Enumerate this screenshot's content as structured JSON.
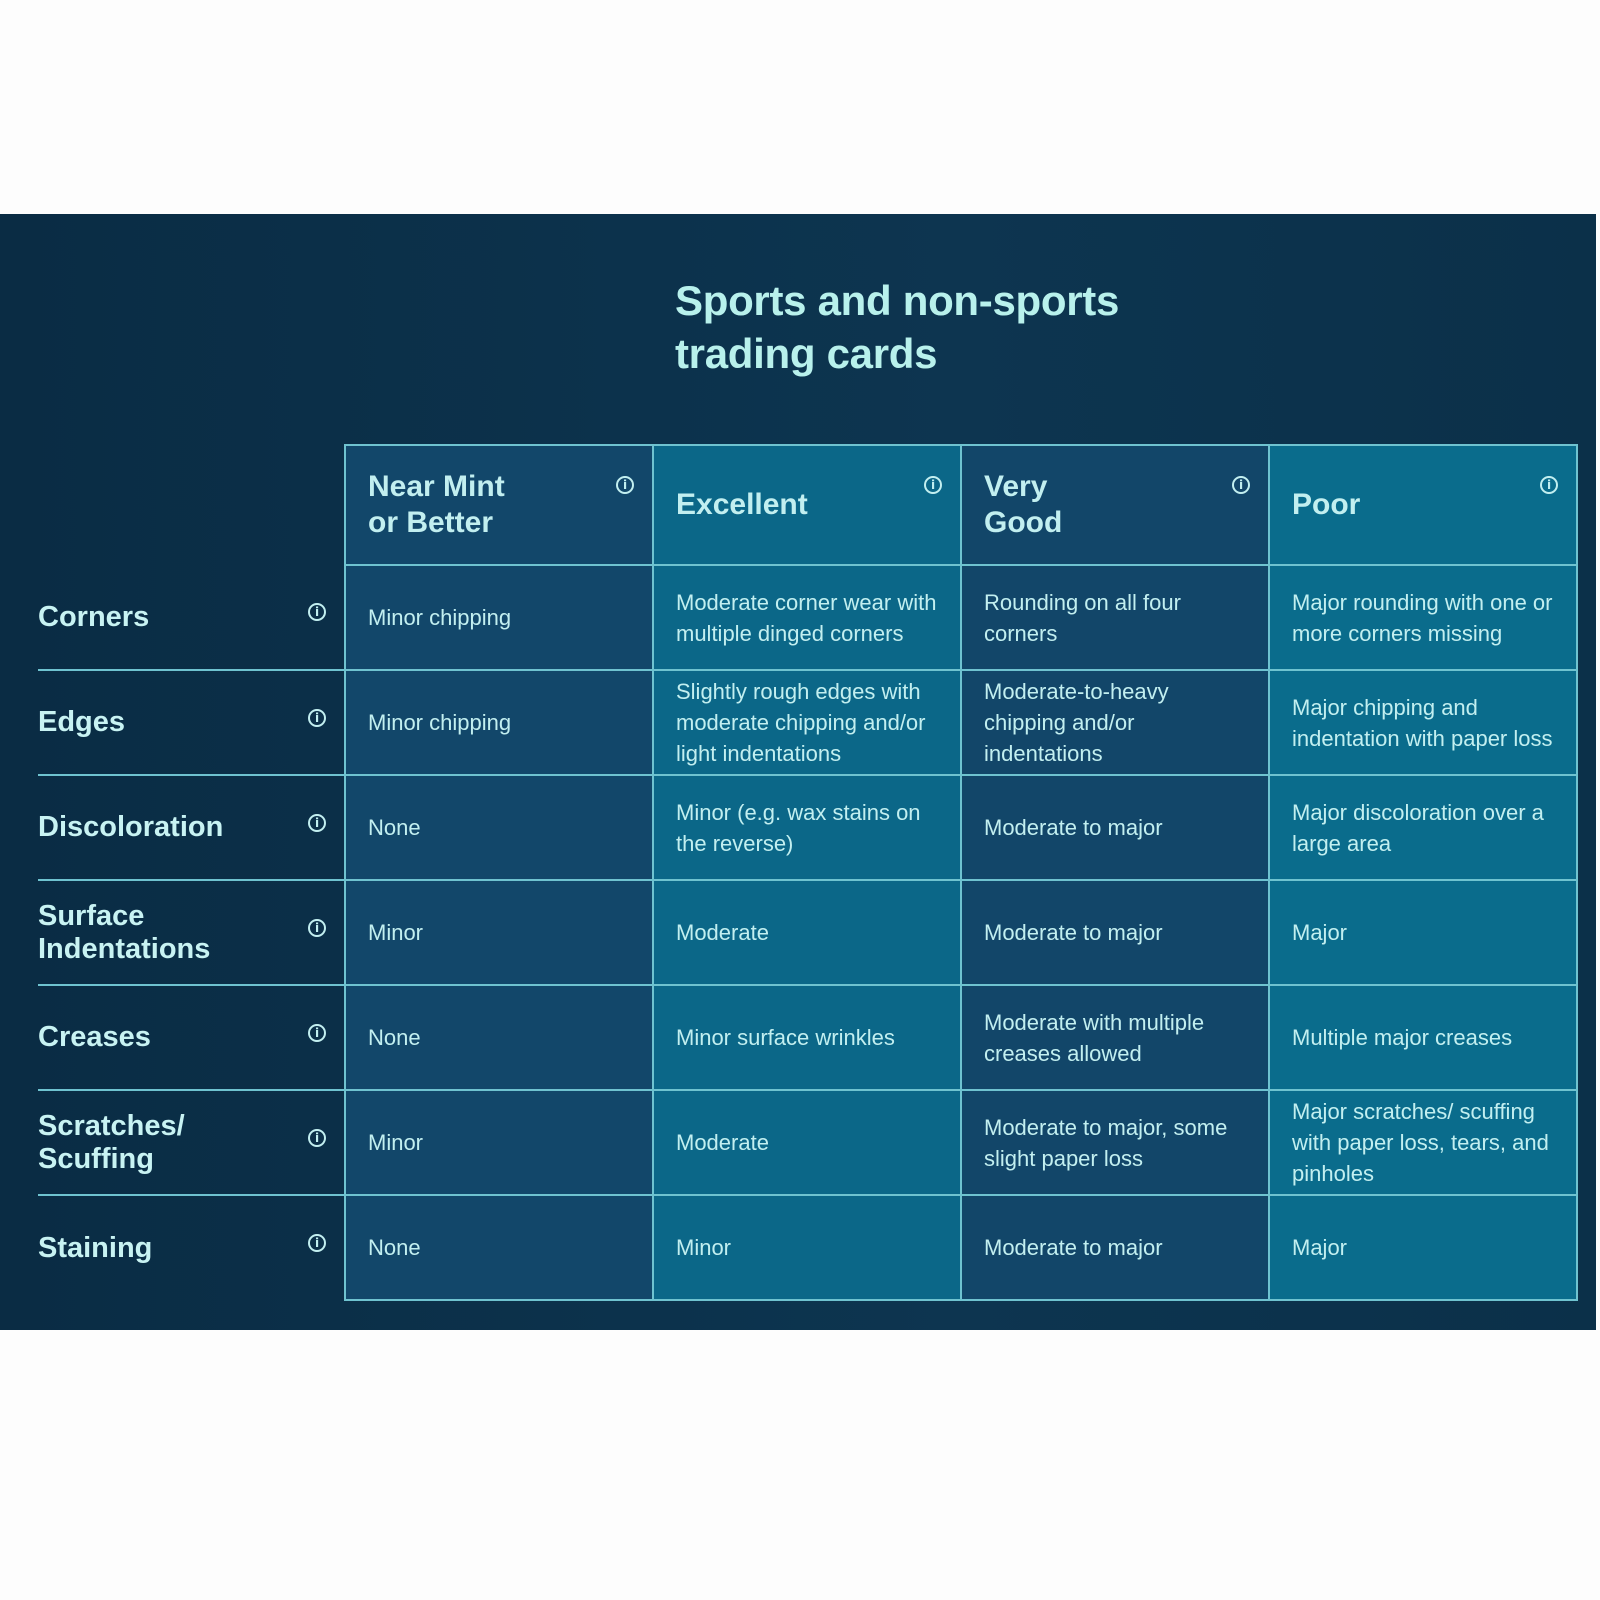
{
  "title": "Sports and non-sports\ntrading cards",
  "columns": [
    {
      "label": "Near Mint\nor Better",
      "icon": "info-icon"
    },
    {
      "label": "Excellent",
      "icon": "info-icon"
    },
    {
      "label": "Very\nGood",
      "icon": "info-icon"
    },
    {
      "label": "Poor",
      "icon": "info-icon"
    }
  ],
  "rows": [
    {
      "label": "Corners",
      "cells": [
        "Minor chipping",
        "Moderate corner wear with multiple dinged corners",
        "Rounding on all four corners",
        "Major rounding with one or more corners missing"
      ]
    },
    {
      "label": "Edges",
      "cells": [
        "Minor chipping",
        "Slightly rough edges with moderate chipping and/or light indentations",
        "Moderate-to-heavy chipping and/or indentations",
        "Major chipping and indentation with paper loss"
      ]
    },
    {
      "label": "Discoloration",
      "cells": [
        "None",
        "Minor (e.g. wax stains on the reverse)",
        "Moderate to major",
        "Major discoloration over a large area"
      ]
    },
    {
      "label": "Surface Indentations",
      "cells": [
        "Minor",
        "Moderate",
        "Moderate to major",
        "Major"
      ]
    },
    {
      "label": "Creases",
      "cells": [
        "None",
        "Minor surface wrinkles",
        "Moderate with multiple creases allowed",
        "Multiple major creases"
      ]
    },
    {
      "label": "Scratches/ Scuffing",
      "cells": [
        "Minor",
        "Moderate",
        "Moderate to major, some slight paper loss",
        "Major scratches/ scuffing with paper loss, tears, and pinholes"
      ]
    },
    {
      "label": "Staining",
      "cells": [
        "None",
        "Minor",
        "Moderate to major",
        "Major"
      ]
    }
  ],
  "colors": {
    "background": "#0b2e46",
    "text": "#c2eff0",
    "title": "#b8f1ec",
    "col_dark": "#12476a",
    "col_teal": "#0b6788",
    "border": "#6fc3d0"
  }
}
